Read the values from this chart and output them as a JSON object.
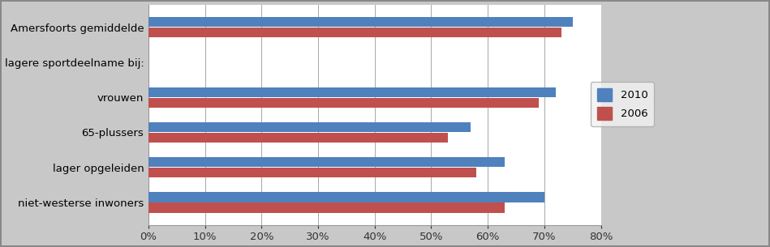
{
  "categories": [
    "niet-westerse inwoners",
    "lager opgeleiden",
    "65-plussers",
    "vrouwen",
    "lagere sportdeelname bij:",
    "Amersfoorts gemiddelde"
  ],
  "values_2010": [
    0.7,
    0.63,
    0.57,
    0.72,
    null,
    0.75
  ],
  "values_2006": [
    0.63,
    0.58,
    0.53,
    0.69,
    null,
    0.73
  ],
  "color_2010": "#4F81BD",
  "color_2006": "#C0504D",
  "xlim": [
    0,
    0.8
  ],
  "xticks": [
    0.0,
    0.1,
    0.2,
    0.3,
    0.4,
    0.5,
    0.6,
    0.7,
    0.8
  ],
  "xtick_labels": [
    "0%",
    "10%",
    "20%",
    "30%",
    "40%",
    "50%",
    "60%",
    "70%",
    "80%"
  ],
  "legend_labels": [
    "2010",
    "2006"
  ],
  "bar_height": 0.28,
  "background_color": "#C8C8C8",
  "plot_background": "#FFFFFF",
  "border_color": "#A0A0A0",
  "figsize": [
    9.49,
    3.05
  ],
  "dpi": 100,
  "fontsize": 9.5
}
